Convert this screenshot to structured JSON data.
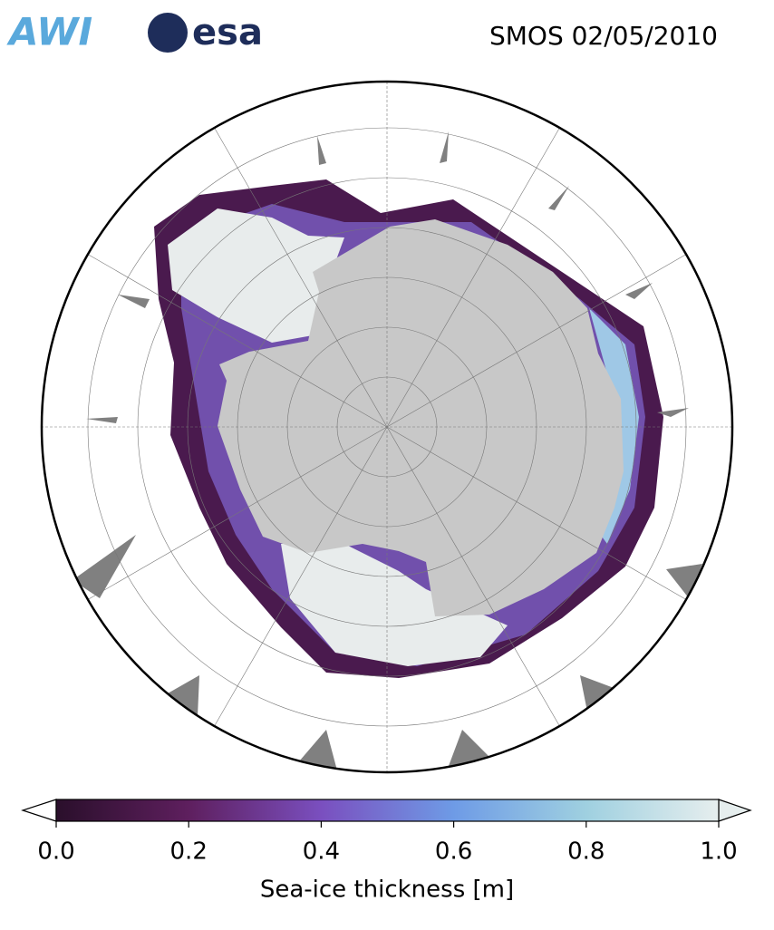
{
  "header": {
    "logos": [
      "AWI",
      "esa"
    ],
    "title": "SMOS 02/05/2010"
  },
  "colorbar": {
    "label": "Sea-ice thickness [m]",
    "lim": [
      0,
      1
    ],
    "ticks": [
      {
        "value": 0,
        "label": "0.0"
      },
      {
        "value": 0.2,
        "label": "0.2"
      },
      {
        "value": 0.4,
        "label": "0.4"
      },
      {
        "value": 0.6,
        "label": "0.6"
      },
      {
        "value": 0.8,
        "label": "0.8"
      },
      {
        "value": 1,
        "label": "1.0"
      }
    ],
    "colors": [
      "#2a0f2b",
      "#5e1f5e",
      "#7a4fbf",
      "#6e9be6",
      "#9fd0e0",
      "#e6eeee"
    ]
  }
}
